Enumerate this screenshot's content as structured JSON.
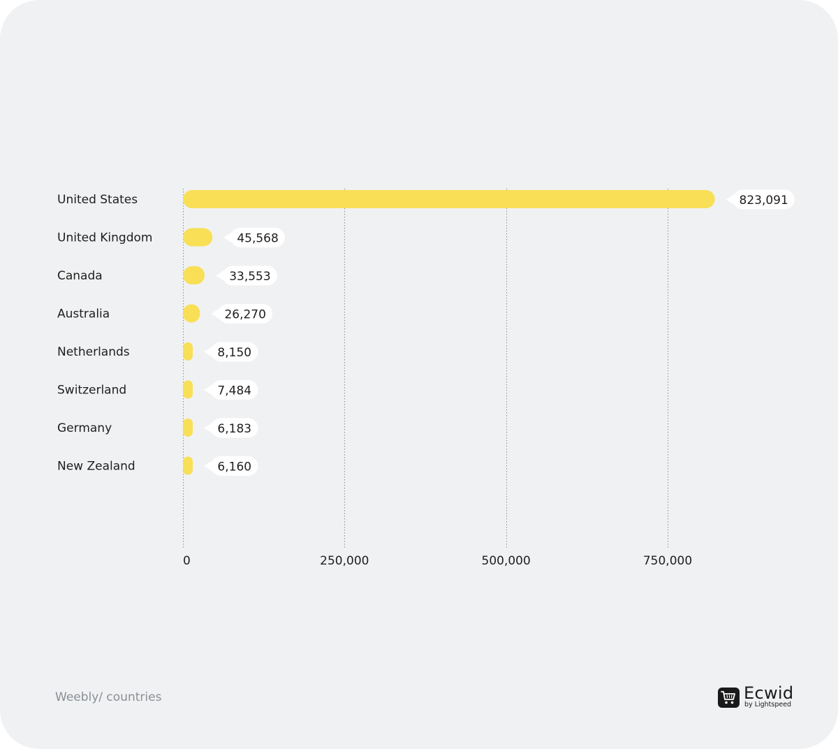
{
  "chart_data": {
    "type": "bar",
    "orientation": "horizontal",
    "categories": [
      "United States",
      "United Kingdom",
      "Canada",
      "Australia",
      "Netherlands",
      "Switzerland",
      "Germany",
      "New Zealand"
    ],
    "values": [
      823091,
      45568,
      33553,
      26270,
      8150,
      7484,
      6183,
      6160
    ],
    "value_labels": [
      "823,091",
      "45,568",
      "33,553",
      "26,270",
      "8,150",
      "7,484",
      "6,183",
      "6,160"
    ],
    "xticks": [
      0,
      250000,
      500000,
      750000
    ],
    "xtick_labels": [
      "0",
      "250,000",
      "500,000",
      "750,000"
    ],
    "xlim": [
      0,
      1000000
    ],
    "grid": "vertical dotted",
    "title": "",
    "xlabel": "",
    "ylabel": ""
  },
  "colors": {
    "bar": "#f8df55",
    "background": "#f0f1f2",
    "gridline": "#8f8f8f",
    "text": "#1e1e1e",
    "caption": "#8a8f96",
    "label_bg": "#ffffff"
  },
  "footer": {
    "caption": "Weebly/ countries"
  },
  "brand": {
    "name": "Ecwid",
    "subtitle": "by Lightspeed",
    "icon": "shopping-cart-icon"
  }
}
